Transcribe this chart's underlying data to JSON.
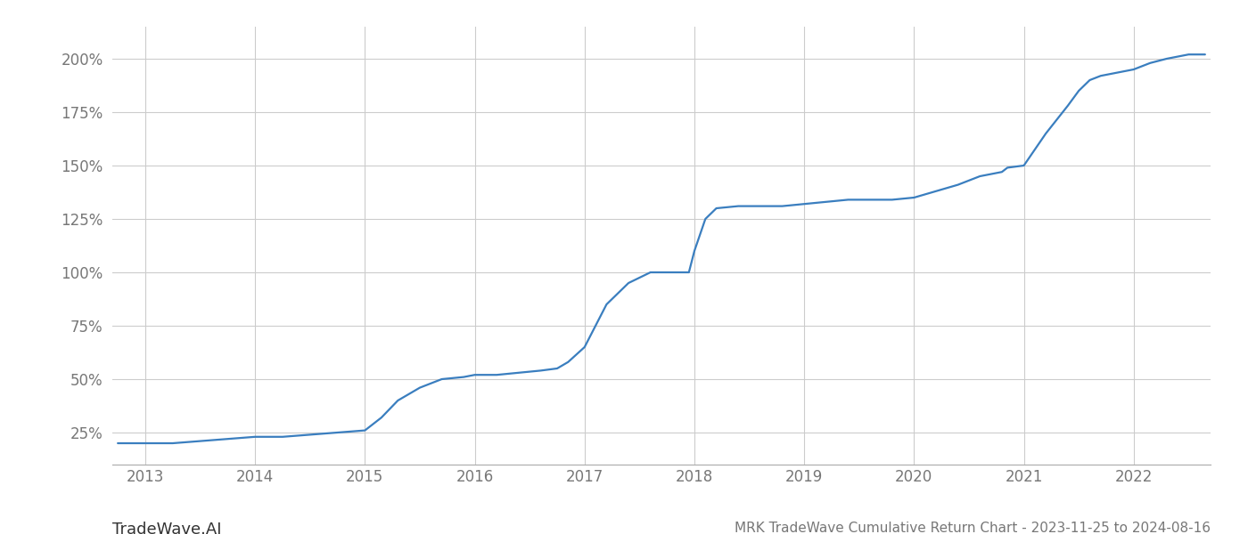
{
  "title": "MRK TradeWave Cumulative Return Chart - 2023-11-25 to 2024-08-16",
  "watermark": "TradeWave.AI",
  "line_color": "#3a7ebf",
  "background_color": "#ffffff",
  "grid_color": "#cccccc",
  "x_years": [
    2013,
    2014,
    2015,
    2016,
    2017,
    2018,
    2019,
    2020,
    2021,
    2022
  ],
  "x_data": [
    2012.75,
    2013.0,
    2013.25,
    2013.5,
    2013.75,
    2014.0,
    2014.25,
    2014.5,
    2014.75,
    2015.0,
    2015.15,
    2015.3,
    2015.5,
    2015.7,
    2015.9,
    2016.0,
    2016.2,
    2016.4,
    2016.6,
    2016.75,
    2016.85,
    2017.0,
    2017.1,
    2017.2,
    2017.4,
    2017.6,
    2017.8,
    2017.95,
    2018.0,
    2018.1,
    2018.2,
    2018.4,
    2018.6,
    2018.8,
    2019.0,
    2019.2,
    2019.4,
    2019.6,
    2019.8,
    2020.0,
    2020.2,
    2020.4,
    2020.5,
    2020.6,
    2020.8,
    2020.85,
    2021.0,
    2021.2,
    2021.4,
    2021.5,
    2021.6,
    2021.7,
    2021.8,
    2022.0,
    2022.15,
    2022.3,
    2022.5,
    2022.65
  ],
  "y_data": [
    20,
    20,
    20,
    21,
    22,
    23,
    23,
    24,
    25,
    26,
    32,
    40,
    46,
    50,
    51,
    52,
    52,
    53,
    54,
    55,
    58,
    65,
    75,
    85,
    95,
    100,
    100,
    100,
    110,
    125,
    130,
    131,
    131,
    131,
    132,
    133,
    134,
    134,
    134,
    135,
    138,
    141,
    143,
    145,
    147,
    149,
    150,
    165,
    178,
    185,
    190,
    192,
    193,
    195,
    198,
    200,
    202,
    202
  ],
  "ytick_values": [
    25,
    50,
    75,
    100,
    125,
    150,
    175,
    200
  ],
  "xlim": [
    2012.7,
    2022.7
  ],
  "ylim": [
    10,
    215
  ],
  "label_color": "#777777",
  "tick_fontsize": 12,
  "title_fontsize": 11,
  "watermark_fontsize": 13,
  "line_width": 1.6
}
